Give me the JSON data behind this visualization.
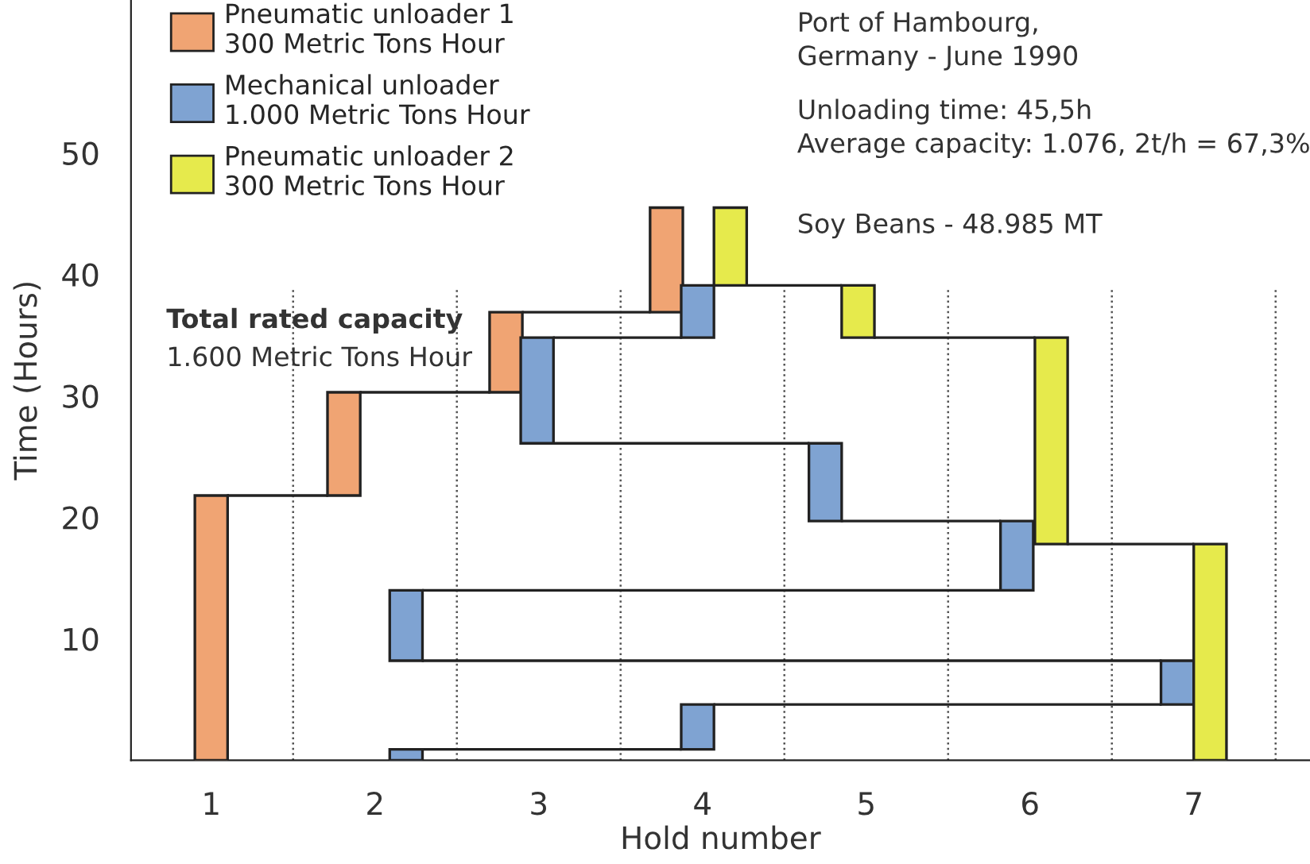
{
  "chart_data": {
    "type": "bar",
    "xlabel": "Hold number",
    "ylabel": "Time (Hours)",
    "xlim": [
      0.51,
      7.71
    ],
    "xticks": [
      1,
      2,
      3,
      4,
      5,
      6,
      7
    ],
    "ylim": [
      0,
      62.6
    ],
    "yticks": [
      10,
      20,
      30,
      40,
      50
    ],
    "grid": false,
    "legend": "top left",
    "series": [
      {
        "name": "Pneumatic unloader 1\n300 Metric Tons Hour",
        "color": "#f0a473",
        "x": [
          1.0,
          1.81,
          2.8,
          3.78
        ],
        "base": [
          0,
          21.8,
          30.3,
          36.9
        ],
        "values": [
          21.8,
          8.5,
          6.6,
          8.6
        ]
      },
      {
        "name": "Mechanical unloader\n1.000 Metric Tons Hour",
        "color": "#7fa3d2",
        "x": [
          2.19,
          2.99,
          3.97,
          4.75,
          5.92,
          6.9
        ],
        "base": [
          0,
          26.1,
          0.9,
          19.7,
          14.0,
          4.6
        ],
        "values": [
          0.9,
          8.7,
          3.7,
          6.4,
          5.7,
          3.6
        ]
      },
      {
        "color": "#7fa3d2",
        "x": [
          2.19,
          3.97
        ],
        "base": [
          8.2,
          34.8
        ],
        "values": [
          5.8,
          4.3
        ]
      },
      {
        "name": "Pneumatic unloader 2\n300 Metric Tons Hour",
        "color": "#e6ea4c",
        "x": [
          4.17,
          4.95,
          6.13,
          7.1
        ],
        "base": [
          39.1,
          34.8,
          17.8,
          0
        ],
        "values": [
          6.4,
          4.3,
          17.0,
          17.8
        ]
      },
      {
        "type": "line",
        "color": "#222222",
        "x": [
          1.1,
          1.71
        ],
        "values": [
          21.8,
          21.8
        ]
      },
      {
        "type": "line",
        "color": "#222222",
        "x": [
          1.91,
          2.7
        ],
        "values": [
          30.3,
          30.3
        ]
      },
      {
        "type": "line",
        "color": "#222222",
        "x": [
          2.9,
          3.68
        ],
        "values": [
          36.9,
          36.9
        ]
      },
      {
        "type": "line",
        "color": "#222222",
        "x": [
          2.29,
          3.87
        ],
        "values": [
          0.9,
          0.9
        ]
      },
      {
        "type": "line",
        "color": "#222222",
        "x": [
          4.07,
          6.8
        ],
        "values": [
          4.6,
          4.6
        ]
      },
      {
        "type": "line",
        "color": "#222222",
        "x": [
          2.29,
          6.8
        ],
        "values": [
          8.2,
          8.2
        ]
      },
      {
        "type": "line",
        "color": "#222222",
        "x": [
          2.29,
          5.82
        ],
        "values": [
          14.0,
          14.0
        ]
      },
      {
        "type": "line",
        "color": "#222222",
        "x": [
          4.85,
          5.82
        ],
        "values": [
          19.7,
          19.7
        ]
      },
      {
        "type": "line",
        "color": "#222222",
        "x": [
          3.09,
          4.65
        ],
        "values": [
          26.1,
          26.1
        ]
      },
      {
        "type": "line",
        "color": "#222222",
        "x": [
          3.09,
          3.87
        ],
        "values": [
          34.8,
          34.8
        ]
      },
      {
        "type": "line",
        "color": "#222222",
        "x": [
          6.23,
          7.0
        ],
        "values": [
          17.8,
          17.8
        ]
      },
      {
        "type": "line",
        "color": "#222222",
        "x": [
          5.05,
          6.03
        ],
        "values": [
          34.8,
          34.8
        ]
      },
      {
        "type": "line",
        "color": "#222222",
        "x": [
          4.27,
          4.85
        ],
        "values": [
          39.1,
          39.1
        ]
      }
    ],
    "ref_lines": [
      {
        "axis": "x",
        "value": 1.5,
        "line_style": "dotted",
        "color": "#555555"
      },
      {
        "axis": "x",
        "value": 2.5,
        "line_style": "dotted",
        "color": "#555555"
      },
      {
        "axis": "x",
        "value": 3.5,
        "line_style": "dotted",
        "color": "#555555"
      },
      {
        "axis": "x",
        "value": 4.5,
        "line_style": "dotted",
        "color": "#555555"
      },
      {
        "axis": "x",
        "value": 5.5,
        "line_style": "dotted",
        "color": "#555555"
      },
      {
        "axis": "x",
        "value": 6.5,
        "line_style": "dotted",
        "color": "#555555"
      },
      {
        "axis": "x",
        "value": 7.5,
        "line_style": "dotted",
        "color": "#555555"
      }
    ],
    "annotations": [
      "Total rated capacity",
      "1.600 Metric Tons Hour",
      "Port of Hambourg,\nGermany - June 1990",
      "Unloading time: 45,5h\nAverage capacity: 1.076, 2t/h = 67,3%",
      "Soy Beans - 48.985 MT"
    ]
  }
}
